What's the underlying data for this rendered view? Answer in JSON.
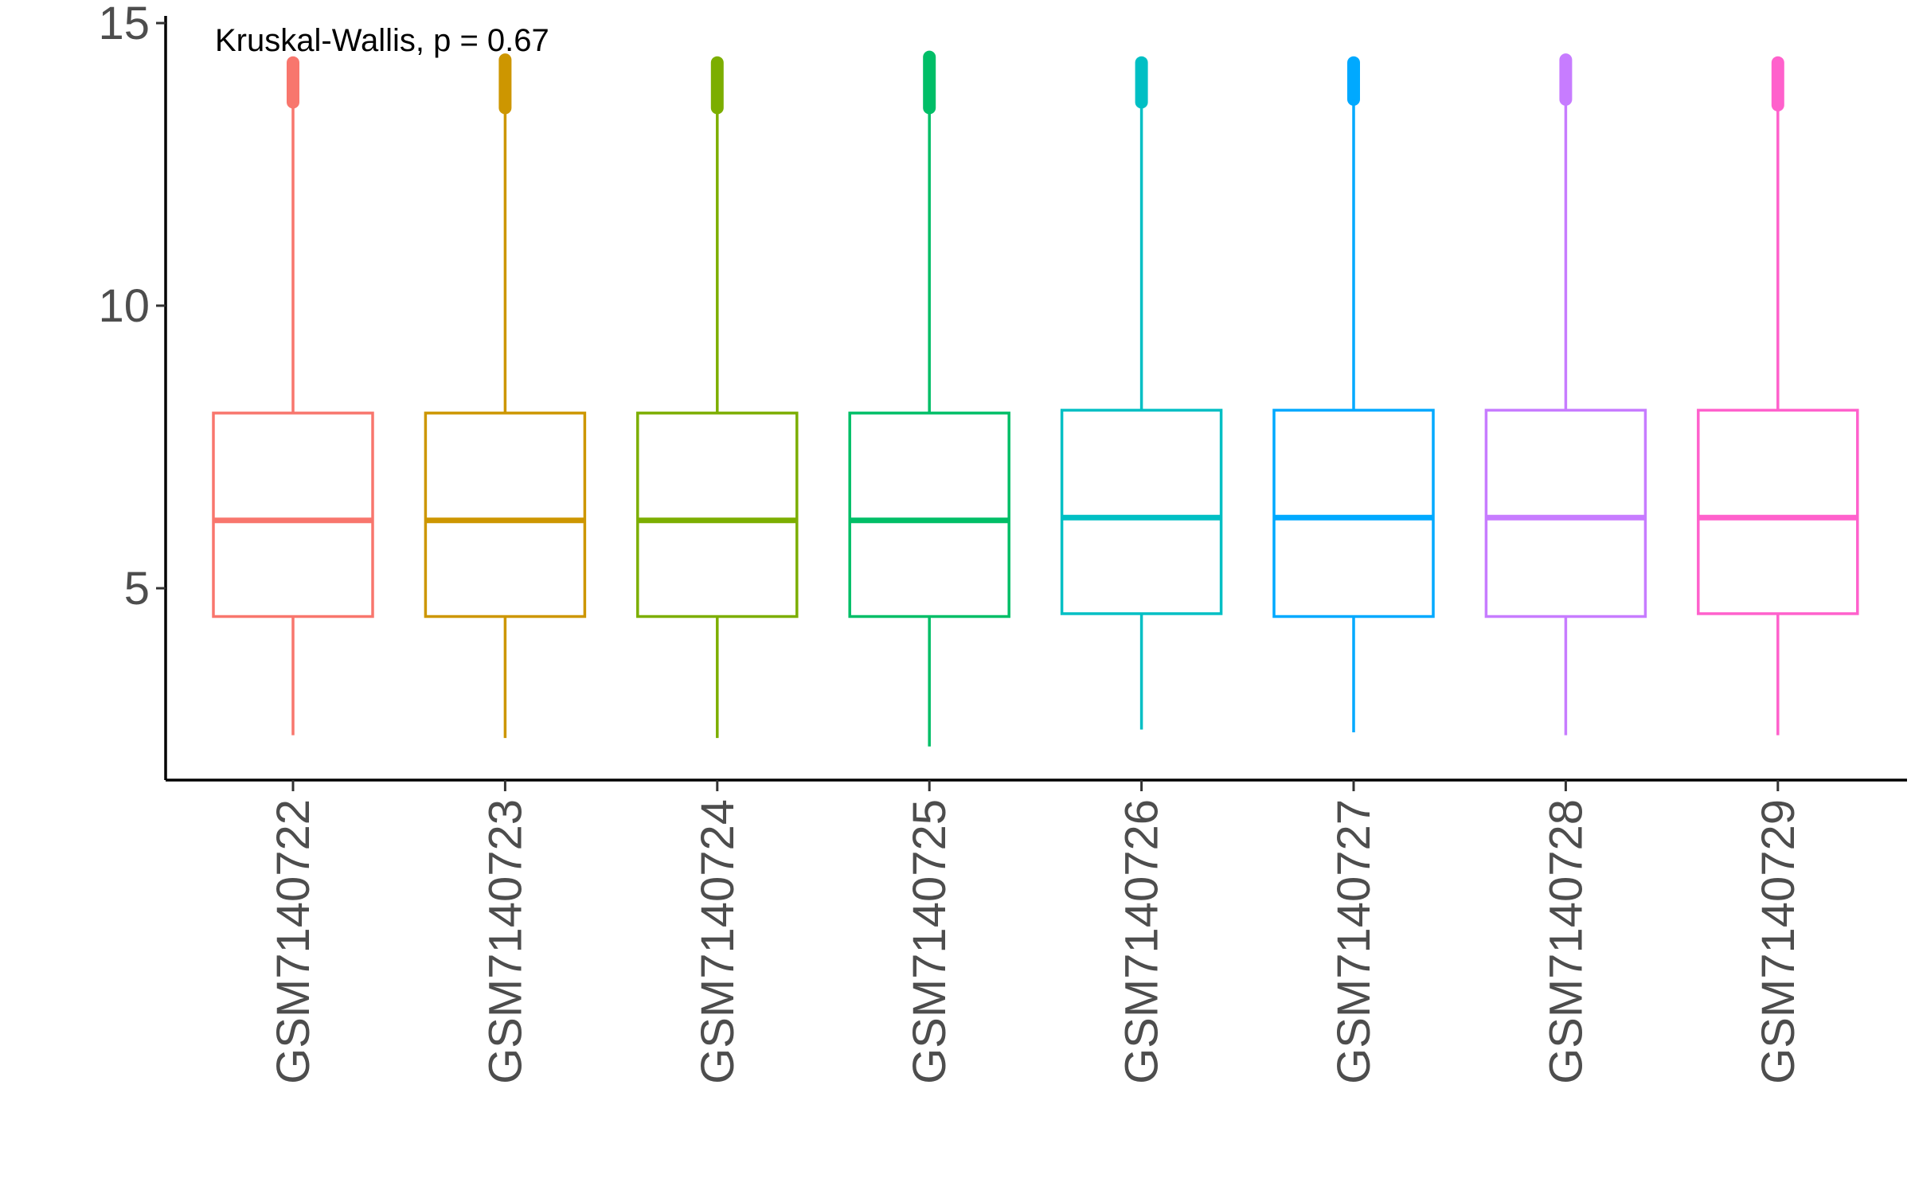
{
  "chart_data": {
    "type": "box",
    "title": "",
    "xlabel": "",
    "ylabel": "",
    "ylim": [
      1.8,
      15
    ],
    "y_ticks": [
      5,
      10,
      15
    ],
    "y_tick_labels": [
      "5",
      "10",
      "15"
    ],
    "categories": [
      "GSM7140722",
      "GSM7140723",
      "GSM7140724",
      "GSM7140725",
      "GSM7140726",
      "GSM7140727",
      "GSM7140728",
      "GSM7140729"
    ],
    "colors": [
      "#F8766D",
      "#CD9600",
      "#7CAE00",
      "#00BE67",
      "#00BFC4",
      "#00A9FF",
      "#C77CFF",
      "#FF61CC"
    ],
    "boxes": [
      {
        "whisker_low": 2.4,
        "q1": 4.5,
        "median": 6.2,
        "q3": 8.1,
        "whisker_high": 13.6,
        "outliers_max": 14.3
      },
      {
        "whisker_low": 2.35,
        "q1": 4.5,
        "median": 6.2,
        "q3": 8.1,
        "whisker_high": 13.5,
        "outliers_max": 14.35
      },
      {
        "whisker_low": 2.35,
        "q1": 4.5,
        "median": 6.2,
        "q3": 8.1,
        "whisker_high": 13.5,
        "outliers_max": 14.3
      },
      {
        "whisker_low": 2.2,
        "q1": 4.5,
        "median": 6.2,
        "q3": 8.1,
        "whisker_high": 13.5,
        "outliers_max": 14.4
      },
      {
        "whisker_low": 2.5,
        "q1": 4.55,
        "median": 6.25,
        "q3": 8.15,
        "whisker_high": 13.6,
        "outliers_max": 14.3
      },
      {
        "whisker_low": 2.45,
        "q1": 4.5,
        "median": 6.25,
        "q3": 8.15,
        "whisker_high": 13.65,
        "outliers_max": 14.3
      },
      {
        "whisker_low": 2.4,
        "q1": 4.5,
        "median": 6.25,
        "q3": 8.15,
        "whisker_high": 13.65,
        "outliers_max": 14.35
      },
      {
        "whisker_low": 2.4,
        "q1": 4.55,
        "median": 6.25,
        "q3": 8.15,
        "whisker_high": 13.55,
        "outliers_max": 14.3
      }
    ],
    "annotation": "Kruskal-Wallis, p = 0.67",
    "grid": false,
    "legend": "none"
  }
}
